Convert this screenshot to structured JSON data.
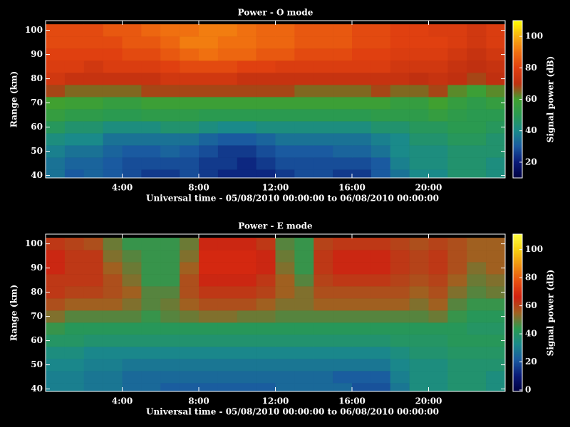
{
  "chart_data": [
    {
      "type": "heatmap",
      "title": "Power - O mode",
      "xlabel": "Universal time - 05/08/2010 00:00:00 to 06/08/2010 00:00:00",
      "ylabel": "Range (km)",
      "colorbar_label": "Signal power (dB)",
      "x": [
        0.5,
        1.5,
        2.5,
        3.5,
        4.5,
        5.5,
        6.5,
        7.5,
        8.5,
        9.5,
        10.5,
        11.5,
        12.5,
        13.5,
        14.5,
        15.5,
        16.5,
        17.5,
        18.5,
        19.5,
        20.5,
        21.5,
        22.5,
        23.5
      ],
      "y": [
        40,
        45,
        50,
        55,
        60,
        65,
        70,
        75,
        80,
        85,
        90,
        95,
        100
      ],
      "xlim": [
        0,
        24
      ],
      "ylim": [
        39,
        104
      ],
      "xticks": [
        {
          "value": 4,
          "label": "4:00"
        },
        {
          "value": 8,
          "label": "8:00"
        },
        {
          "value": 12,
          "label": "12:00"
        },
        {
          "value": 16,
          "label": "16:00"
        },
        {
          "value": 20,
          "label": "20:00"
        }
      ],
      "yticks": [
        40,
        50,
        60,
        70,
        80,
        90,
        100
      ],
      "clim": [
        10,
        110
      ],
      "cticks": [
        20,
        40,
        60,
        80,
        100
      ],
      "colormap": [
        "#000040",
        "#0a1a78",
        "#1a5aa0",
        "#1a8a8a",
        "#2a9a50",
        "#40a030",
        "#c03010",
        "#e04010",
        "#f07010",
        "#f8b010",
        "#ffff00"
      ],
      "values": [
        [
          35,
          30,
          32,
          30,
          28,
          25,
          25,
          28,
          25,
          22,
          22,
          22,
          25,
          28,
          28,
          25,
          25,
          30,
          35,
          40,
          40,
          45,
          45,
          42
        ],
        [
          35,
          32,
          32,
          30,
          28,
          28,
          28,
          28,
          25,
          25,
          22,
          25,
          28,
          28,
          28,
          28,
          28,
          30,
          38,
          42,
          42,
          45,
          45,
          42
        ],
        [
          38,
          35,
          35,
          32,
          30,
          30,
          32,
          30,
          28,
          25,
          25,
          28,
          30,
          30,
          30,
          32,
          32,
          35,
          40,
          42,
          42,
          45,
          45,
          45
        ],
        [
          42,
          40,
          40,
          35,
          35,
          35,
          35,
          35,
          32,
          30,
          30,
          32,
          35,
          35,
          35,
          35,
          35,
          38,
          40,
          45,
          45,
          48,
          48,
          45
        ],
        [
          48,
          45,
          45,
          42,
          42,
          42,
          45,
          45,
          42,
          40,
          40,
          42,
          42,
          42,
          42,
          42,
          42,
          45,
          45,
          48,
          48,
          50,
          50,
          48
        ],
        [
          55,
          52,
          52,
          50,
          50,
          52,
          52,
          52,
          50,
          50,
          50,
          50,
          50,
          50,
          50,
          50,
          50,
          52,
          52,
          52,
          55,
          52,
          50,
          50
        ],
        [
          60,
          58,
          58,
          55,
          55,
          58,
          58,
          58,
          58,
          58,
          58,
          58,
          58,
          58,
          58,
          58,
          58,
          58,
          55,
          55,
          60,
          55,
          52,
          55
        ],
        [
          68,
          65,
          65,
          65,
          65,
          68,
          68,
          68,
          68,
          68,
          68,
          68,
          68,
          65,
          65,
          65,
          65,
          68,
          65,
          65,
          68,
          62,
          58,
          62
        ],
        [
          75,
          72,
          72,
          72,
          72,
          72,
          75,
          75,
          75,
          75,
          72,
          72,
          72,
          72,
          72,
          72,
          72,
          72,
          72,
          70,
          72,
          70,
          68,
          70
        ],
        [
          78,
          78,
          75,
          78,
          78,
          78,
          80,
          82,
          82,
          82,
          80,
          80,
          78,
          78,
          78,
          78,
          78,
          78,
          75,
          75,
          75,
          72,
          70,
          72
        ],
        [
          80,
          80,
          80,
          80,
          82,
          82,
          85,
          88,
          90,
          88,
          88,
          85,
          85,
          82,
          82,
          82,
          80,
          80,
          78,
          78,
          78,
          75,
          72,
          75
        ],
        [
          82,
          82,
          82,
          82,
          85,
          85,
          88,
          92,
          92,
          90,
          90,
          88,
          88,
          85,
          85,
          85,
          82,
          82,
          80,
          80,
          80,
          78,
          75,
          78
        ],
        [
          82,
          82,
          82,
          85,
          85,
          88,
          90,
          90,
          92,
          92,
          90,
          88,
          88,
          85,
          85,
          85,
          82,
          82,
          80,
          80,
          78,
          78,
          75,
          78
        ]
      ]
    },
    {
      "type": "heatmap",
      "title": "Power - E mode",
      "xlabel": "Universal time - 05/08/2010 00:00:00 to 06/08/2010 00:00:00",
      "ylabel": "Range (km)",
      "colorbar_label": "Signal power (dB)",
      "x": [
        0.5,
        1.5,
        2.5,
        3.5,
        4.5,
        5.5,
        6.5,
        7.5,
        8.5,
        9.5,
        10.5,
        11.5,
        12.5,
        13.5,
        14.5,
        15.5,
        16.5,
        17.5,
        18.5,
        19.5,
        20.5,
        21.5,
        22.5,
        23.5
      ],
      "y": [
        40,
        45,
        50,
        55,
        60,
        65,
        70,
        75,
        80,
        85,
        90,
        95,
        100
      ],
      "xlim": [
        0,
        24
      ],
      "ylim": [
        39,
        104
      ],
      "xticks": [
        {
          "value": 4,
          "label": "4:00"
        },
        {
          "value": 8,
          "label": "8:00"
        },
        {
          "value": 12,
          "label": "12:00"
        },
        {
          "value": 16,
          "label": "16:00"
        },
        {
          "value": 20,
          "label": "20:00"
        }
      ],
      "yticks": [
        40,
        50,
        60,
        70,
        80,
        90,
        100
      ],
      "clim": [
        -1,
        111
      ],
      "cticks": [
        0,
        20,
        40,
        60,
        80,
        100
      ],
      "colormap": [
        "#000040",
        "#0a1a78",
        "#1a5aa0",
        "#1a8a8a",
        "#2a9a50",
        "#a06020",
        "#d02010",
        "#e85010",
        "#f09010",
        "#f8d010",
        "#ffff40"
      ],
      "values": [
        [
          30,
          30,
          28,
          28,
          25,
          25,
          22,
          22,
          22,
          22,
          22,
          22,
          25,
          25,
          25,
          25,
          20,
          20,
          28,
          35,
          35,
          38,
          38,
          35
        ],
        [
          30,
          30,
          28,
          28,
          25,
          25,
          25,
          25,
          25,
          25,
          25,
          25,
          25,
          25,
          25,
          22,
          22,
          22,
          30,
          35,
          35,
          38,
          38,
          35
        ],
        [
          32,
          32,
          30,
          30,
          28,
          28,
          28,
          28,
          28,
          28,
          28,
          28,
          28,
          28,
          28,
          28,
          28,
          28,
          32,
          35,
          35,
          38,
          38,
          38
        ],
        [
          35,
          35,
          32,
          32,
          32,
          32,
          32,
          32,
          32,
          32,
          32,
          32,
          32,
          32,
          32,
          32,
          32,
          32,
          35,
          38,
          38,
          40,
          40,
          40
        ],
        [
          40,
          40,
          38,
          38,
          38,
          38,
          38,
          38,
          38,
          38,
          38,
          38,
          38,
          38,
          38,
          38,
          38,
          38,
          40,
          40,
          40,
          42,
          42,
          42
        ],
        [
          45,
          42,
          42,
          42,
          42,
          42,
          42,
          42,
          42,
          42,
          42,
          42,
          42,
          42,
          42,
          42,
          42,
          42,
          42,
          42,
          42,
          42,
          40,
          40
        ],
        [
          52,
          48,
          48,
          48,
          48,
          45,
          48,
          50,
          52,
          52,
          50,
          50,
          48,
          48,
          48,
          48,
          48,
          48,
          48,
          48,
          50,
          45,
          42,
          42
        ],
        [
          58,
          55,
          55,
          55,
          52,
          48,
          50,
          55,
          58,
          58,
          58,
          55,
          52,
          52,
          55,
          55,
          55,
          55,
          55,
          52,
          55,
          48,
          45,
          45
        ],
        [
          62,
          60,
          60,
          58,
          55,
          48,
          48,
          58,
          62,
          62,
          62,
          60,
          55,
          52,
          58,
          58,
          58,
          58,
          58,
          55,
          58,
          52,
          48,
          50
        ],
        [
          62,
          62,
          62,
          58,
          52,
          45,
          45,
          58,
          65,
          65,
          65,
          62,
          55,
          48,
          60,
          62,
          62,
          62,
          60,
          58,
          60,
          55,
          50,
          52
        ],
        [
          65,
          62,
          62,
          55,
          50,
          45,
          45,
          55,
          68,
          68,
          68,
          65,
          52,
          45,
          62,
          65,
          65,
          65,
          62,
          60,
          62,
          58,
          52,
          55
        ],
        [
          65,
          62,
          62,
          52,
          48,
          45,
          45,
          52,
          68,
          68,
          68,
          65,
          50,
          45,
          62,
          65,
          65,
          65,
          62,
          60,
          62,
          58,
          55,
          55
        ],
        [
          62,
          60,
          58,
          50,
          45,
          45,
          45,
          50,
          65,
          65,
          65,
          62,
          48,
          45,
          60,
          62,
          62,
          62,
          60,
          58,
          60,
          58,
          55,
          55
        ]
      ]
    }
  ]
}
